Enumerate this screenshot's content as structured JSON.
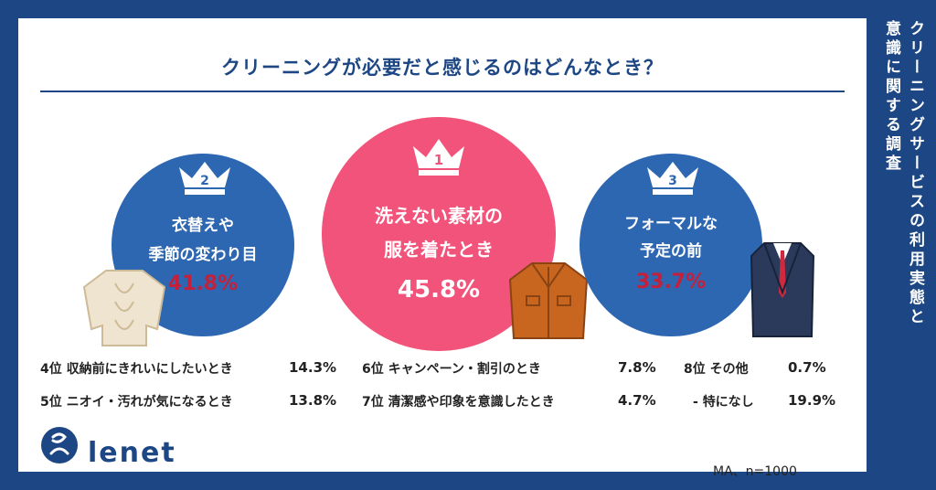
{
  "title": "クリーニングが必要だと感じるのはどんなとき？",
  "side_title_line1": "クリーニングサービスの利用実態と",
  "side_title_line2": "意識に関する調査",
  "top3": [
    {
      "rank": "2",
      "line1": "衣替えや",
      "line2": "季節の変わり目",
      "percent": "41.8%"
    },
    {
      "rank": "1",
      "line1": "洗えない素材の",
      "line2": "服を着たとき",
      "percent": "45.8%"
    },
    {
      "rank": "3",
      "line1": "フォーマルな",
      "line2": "予定の前",
      "percent": "33.7%"
    }
  ],
  "others": [
    {
      "rank": "4位",
      "label": "収納前にきれいにしたいとき",
      "value": "14.3%"
    },
    {
      "rank": "5位",
      "label": "ニオイ・汚れが気になるとき",
      "value": "13.8%"
    },
    {
      "rank": "6位",
      "label": "キャンペーン・割引のとき",
      "value": "7.8%"
    },
    {
      "rank": "7位",
      "label": "清潔感や印象を意識したとき",
      "value": "4.7%"
    },
    {
      "rank": "8位",
      "label": "その他",
      "value": "0.7%"
    },
    {
      "rank": "-",
      "label": "特になし",
      "value": "19.9%"
    }
  ],
  "logo": "lenet",
  "note": "MA、n=1000",
  "colors": {
    "navy": "#1d4784",
    "blue": "#2e67b1",
    "pink": "#f2537a",
    "red": "#c4203b"
  },
  "icons": [
    "crown-icon",
    "sweater-icon",
    "jacket-icon",
    "suit-icon",
    "logo-mark-icon"
  ]
}
